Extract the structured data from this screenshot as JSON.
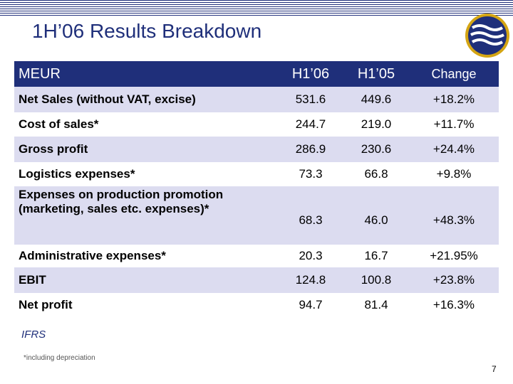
{
  "slide": {
    "title": "1H’06 Results Breakdown",
    "note": "IFRS",
    "footnote": "*including depreciation",
    "page_number": "7"
  },
  "table": {
    "headers": [
      "MEUR",
      "H1’06",
      "H1’05",
      "Change"
    ],
    "rows": [
      {
        "label": "Net Sales (without VAT, excise)",
        "h1_06": "531.6",
        "h1_05": "449.6",
        "change": "+18.2%"
      },
      {
        "label": "Cost of sales*",
        "h1_06": "244.7",
        "h1_05": "219.0",
        "change": "+11.7%"
      },
      {
        "label": "Gross profit",
        "h1_06": "286.9",
        "h1_05": "230.6",
        "change": "+24.4%"
      },
      {
        "label": "Logistics expenses*",
        "h1_06": "73.3",
        "h1_05": "66.8",
        "change": "+9.8%"
      },
      {
        "label": "Expenses on production promotion (marketing, sales etc. expenses)*",
        "h1_06": "68.3",
        "h1_05": "46.0",
        "change": "+48.3%"
      },
      {
        "label": "Administrative expenses*",
        "h1_06": "20.3",
        "h1_05": "16.7",
        "change": "+21.95%"
      },
      {
        "label": "EBIT",
        "h1_06": "124.8",
        "h1_05": "100.8",
        "change": "+23.8%"
      },
      {
        "label": "Net profit",
        "h1_06": "94.7",
        "h1_05": "81.4",
        "change": "+16.3%"
      }
    ]
  },
  "colors": {
    "brand_navy": "#1f2f7a",
    "row_alt": "#dcdcf0",
    "logo_gold": "#d4a514"
  },
  "logo": {
    "icon": "waves-logo-icon"
  }
}
